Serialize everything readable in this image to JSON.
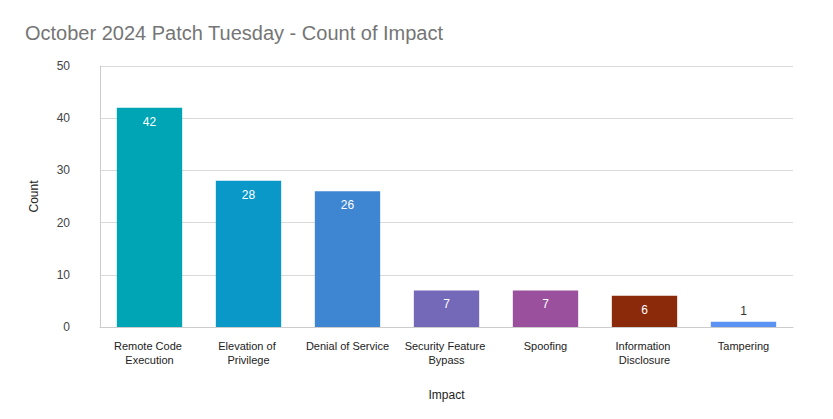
{
  "chart_data": {
    "type": "bar",
    "title": "October 2024 Patch Tuesday - Count of Impact",
    "x_label": "Impact",
    "y_label": "Count",
    "categories": [
      "Remote Code Execution",
      "Elevation of Privilege",
      "Denial of Service",
      "Security Feature Bypass",
      "Spoofing",
      "Information Disclosure",
      "Tampering"
    ],
    "values": [
      42,
      28,
      26,
      7,
      7,
      6,
      1
    ],
    "colors": [
      "#00a5b5",
      "#0a98c9",
      "#3f86d2",
      "#7468b8",
      "#9a509c",
      "#8b2a0a",
      "#5b93f5"
    ],
    "ylim": [
      0,
      50
    ],
    "yticks": [
      0,
      10,
      20,
      30,
      40,
      50
    ],
    "grid": true,
    "data_labels": true
  }
}
